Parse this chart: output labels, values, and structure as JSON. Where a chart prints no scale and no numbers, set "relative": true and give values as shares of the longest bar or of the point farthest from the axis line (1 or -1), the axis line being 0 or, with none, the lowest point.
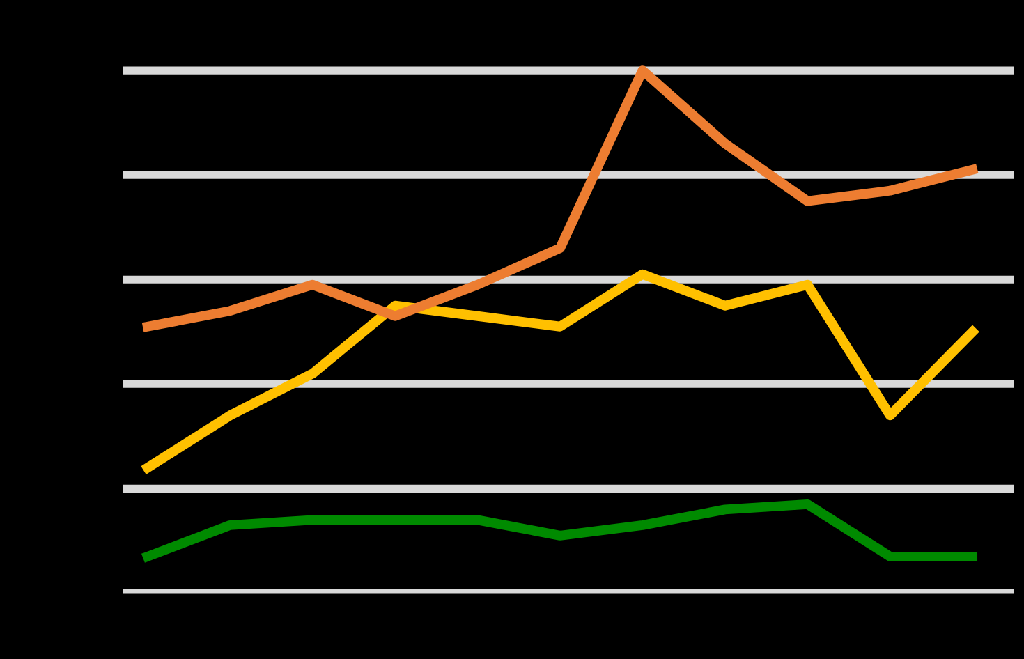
{
  "chart_data": {
    "type": "line",
    "relative": true,
    "grid": "y",
    "marker": "none",
    "line_style": "solid",
    "categories": [
      null,
      null,
      null,
      null,
      null,
      null,
      null,
      null,
      null,
      null,
      null
    ],
    "series": [
      {
        "color": "#ffc000",
        "values": [
          0.24,
          0.34,
          0.42,
          0.55,
          0.53,
          0.51,
          0.61,
          0.55,
          0.59,
          0.34,
          0.5
        ]
      },
      {
        "color": "#008a00",
        "values": [
          0.07,
          0.13,
          0.14,
          0.14,
          0.14,
          0.11,
          0.13,
          0.16,
          0.17,
          0.07,
          0.07
        ]
      },
      {
        "color": "#ed7d31",
        "values": [
          0.51,
          0.54,
          0.59,
          0.53,
          0.59,
          0.66,
          1,
          0.86,
          0.75,
          0.77,
          0.81
        ]
      }
    ]
  }
}
